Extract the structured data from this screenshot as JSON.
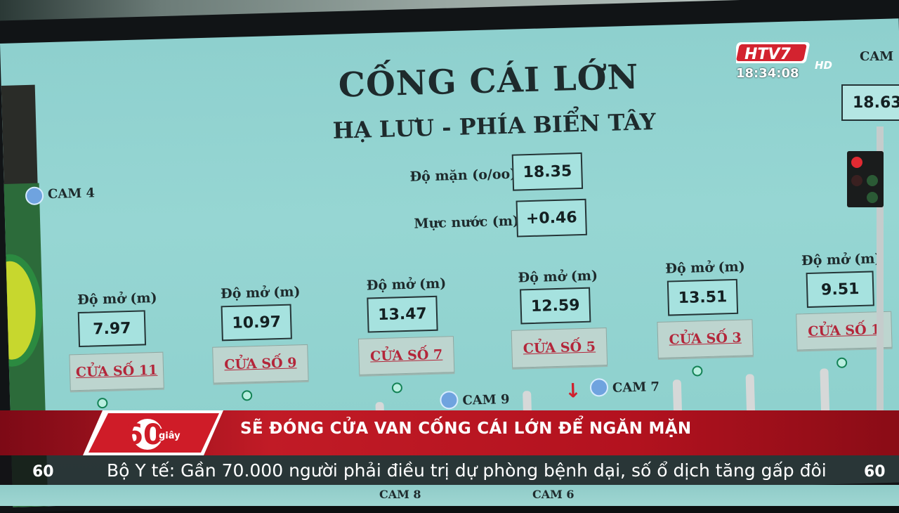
{
  "board": {
    "title": "CỐNG CÁI LỚN",
    "subtitle": "HẠ LƯU - PHÍA BIỂN TÂY",
    "salinity_label": "Độ mặn (o/oo)",
    "salinity_value": "18.35",
    "water_label": "Mực nước (m)",
    "water_value": "+0.46",
    "top_right_cam": "CAM",
    "top_right_value": "18.63",
    "gates": [
      {
        "open_label": "Độ mở (m)",
        "value": "7.97",
        "name": "CỬA SỐ 11"
      },
      {
        "open_label": "Độ mở (m)",
        "value": "10.97",
        "name": "CỬA SỐ 9"
      },
      {
        "open_label": "Độ mở (m)",
        "value": "13.47",
        "name": "CỬA SỐ 7"
      },
      {
        "open_label": "Độ mở (m)",
        "value": "12.59",
        "name": "CỬA SỐ 5"
      },
      {
        "open_label": "Độ mở (m)",
        "value": "13.51",
        "name": "CỬA SỐ 3"
      },
      {
        "open_label": "Độ mở (m)",
        "value": "9.51",
        "name": "CỬA SỐ 1"
      }
    ],
    "cams": {
      "cam4": "CAM 4",
      "cam9": "CAM 9",
      "cam7": "CAM 7",
      "cam8": "CAM 8",
      "cam6": "CAM 6"
    }
  },
  "broadcast": {
    "channel": "HTV7",
    "hd": "HD",
    "time": "18:34:08",
    "program_logo": "60",
    "program_logo_small": "giây",
    "headline": "SẼ ĐÓNG CỬA VAN CỐNG CÁI LỚN ĐỂ NGĂN MẶN",
    "ticker": "Bộ Y tế: Gần 70.000 người phải điều trị dự phòng bệnh dại, số ổ dịch tăng gấp đôi"
  },
  "colors": {
    "screen": "#96d6d3",
    "band": "#c11b26",
    "gate_text": "#b3263a",
    "indicator_green": "#138255"
  }
}
